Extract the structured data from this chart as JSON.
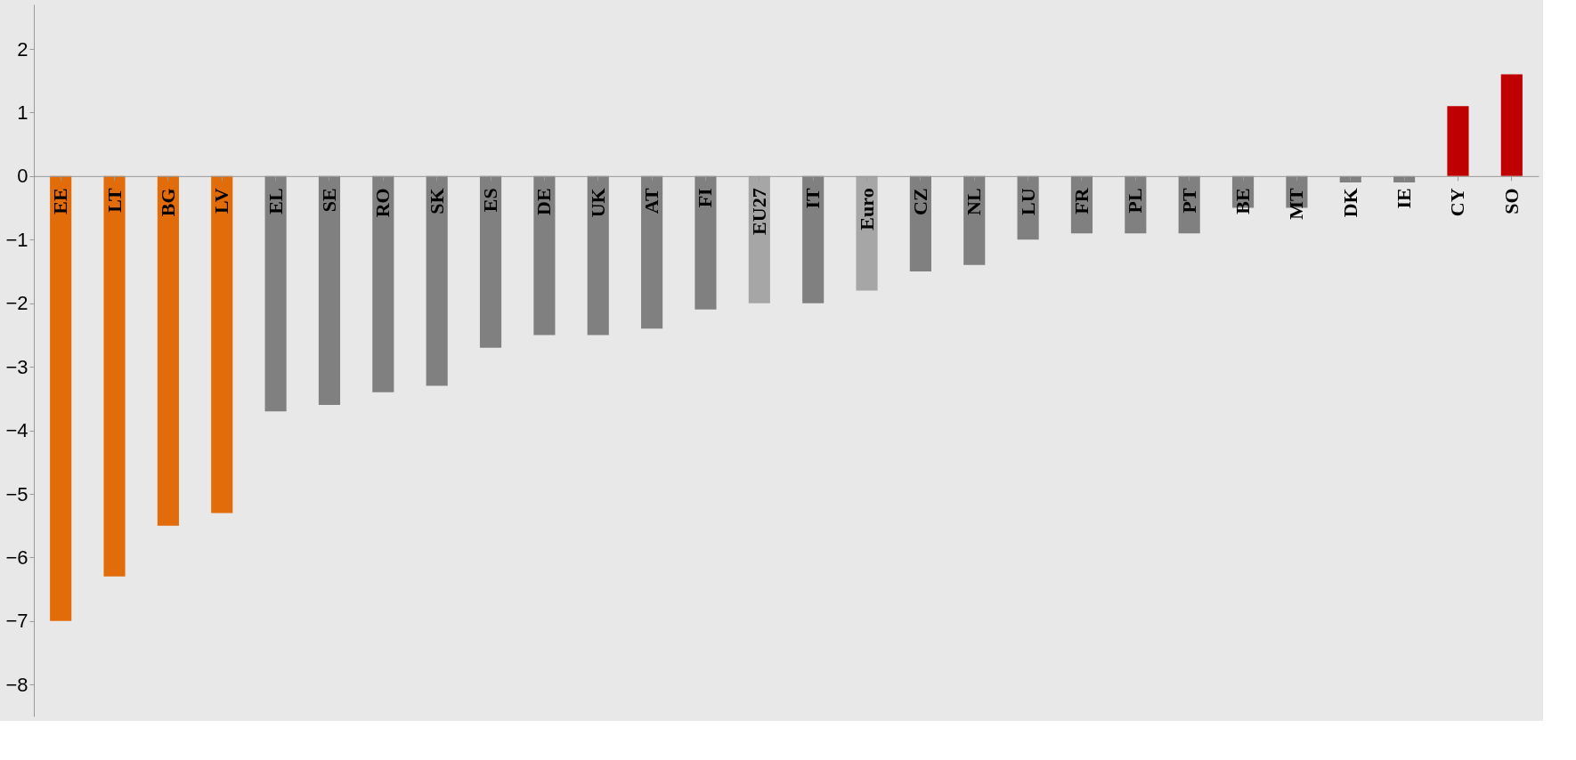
{
  "chart_data": {
    "type": "bar",
    "categories": [
      "EE",
      "LT",
      "BG",
      "LV",
      "EL",
      "SE",
      "RO",
      "SK",
      "ES",
      "DE",
      "UK",
      "AT",
      "FI",
      "EU27",
      "IT",
      "Euro",
      "CZ",
      "NL",
      "LU",
      "FR",
      "PL",
      "PT",
      "BE",
      "MT",
      "DK",
      "IE",
      "CY",
      "SO"
    ],
    "values": [
      -7.0,
      -6.3,
      -5.5,
      -5.3,
      -3.7,
      -3.6,
      -3.4,
      -3.3,
      -2.7,
      -2.5,
      -2.5,
      -2.4,
      -2.1,
      -2.0,
      -2.0,
      -1.8,
      -1.5,
      -1.4,
      -1.0,
      -0.9,
      -0.9,
      -0.9,
      -0.5,
      -0.5,
      -0.1,
      -0.1,
      1.1,
      1.6
    ],
    "colors": [
      "#e36c0a",
      "#e36c0a",
      "#e36c0a",
      "#e36c0a",
      "#808080",
      "#808080",
      "#808080",
      "#808080",
      "#808080",
      "#808080",
      "#808080",
      "#808080",
      "#808080",
      "#a6a6a6",
      "#808080",
      "#a6a6a6",
      "#808080",
      "#808080",
      "#808080",
      "#808080",
      "#808080",
      "#808080",
      "#808080",
      "#808080",
      "#808080",
      "#808080",
      "#c00000",
      "#c00000"
    ],
    "ylim": [
      -8.5,
      2.7
    ],
    "yticks": [
      -8,
      -7,
      -6,
      -5,
      -4,
      -3,
      -2,
      -1,
      0,
      1,
      2
    ],
    "grid": false
  }
}
